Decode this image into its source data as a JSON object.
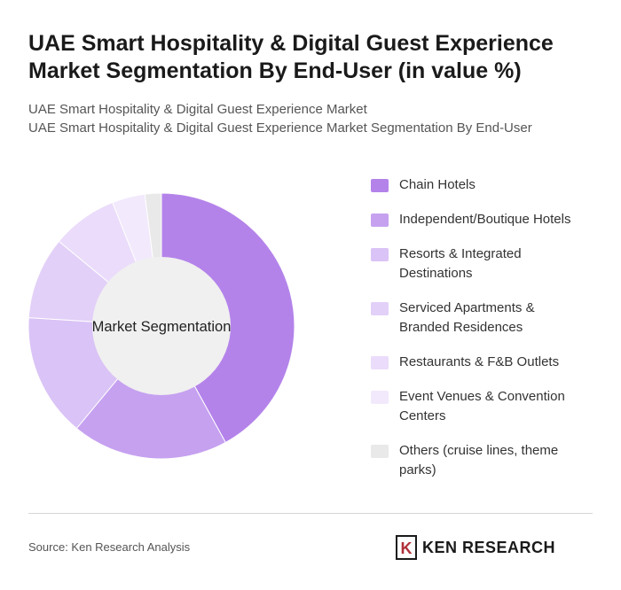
{
  "title": "UAE Smart Hospitality & Digital Guest Experience Market Segmentation By End-User (in value %)",
  "subtitle_lines": [
    "UAE Smart Hospitality & Digital Guest Experience Market",
    "UAE Smart Hospitality & Digital Guest Experience Market Segmentation By End-User"
  ],
  "chart_data": {
    "type": "pie",
    "donut": true,
    "center_label": "Market Segmentation",
    "legend_position": "right",
    "categories": [
      "Chain Hotels",
      "Independent/Boutique Hotels",
      "Resorts & Integrated Destinations",
      "Serviced Apartments & Branded Residences",
      "Restaurants & F&B Outlets",
      "Event Venues & Convention Centers",
      "Others (cruise lines, theme parks)"
    ],
    "legend_lines": [
      [
        "Chain Hotels"
      ],
      [
        "Independent/Boutique Hotels"
      ],
      [
        "Resorts & Integrated",
        "Destinations"
      ],
      [
        "Serviced Apartments &",
        "Branded Residences"
      ],
      [
        "Restaurants & F&B Outlets"
      ],
      [
        "Event Venues & Convention",
        "Centers"
      ],
      [
        "Others (cruise lines, theme",
        "parks)"
      ]
    ],
    "values": [
      42,
      19,
      15,
      10,
      8,
      4,
      2
    ],
    "colors": [
      "#b483ea",
      "#c6a1f0",
      "#dac3f6",
      "#e2d0f8",
      "#eadcfa",
      "#f2e9fc",
      "#e9e9e9"
    ]
  },
  "footer": {
    "source": "Source: Ken Research Analysis",
    "logo_text": "KEN RESEARCH",
    "logo_letter": "K"
  }
}
